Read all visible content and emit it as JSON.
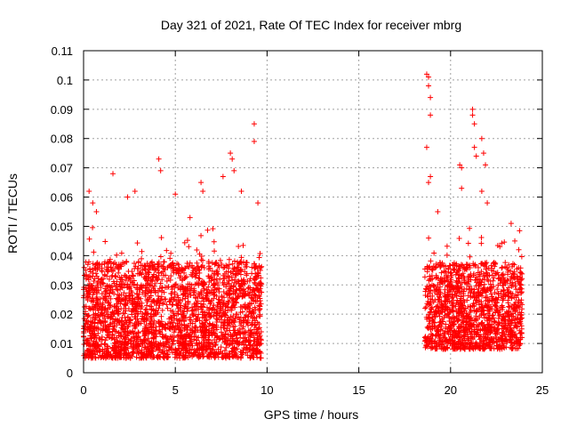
{
  "chart_data": {
    "type": "scatter",
    "title": "Day 321 of 2021, Rate Of TEC Index for receiver mbrg",
    "xlabel": "GPS time / hours",
    "ylabel": "ROTI / TECUs",
    "xlim": [
      0,
      25
    ],
    "ylim": [
      0,
      0.11
    ],
    "x_ticks": [
      "0",
      "5",
      "10",
      "15",
      "20",
      "25"
    ],
    "y_ticks": [
      "0",
      "0.01",
      "0.02",
      "0.03",
      "0.04",
      "0.05",
      "0.06",
      "0.07",
      "0.08",
      "0.09",
      "0.1",
      "0.11"
    ],
    "grid": true,
    "marker": "+",
    "color": "#ff0000",
    "data_segments": [
      {
        "x_start": 0.0,
        "x_end": 9.7,
        "typical_range": [
          0.005,
          0.035
        ],
        "notes": "dense block, spikes up to ~0.085"
      },
      {
        "x_start": 18.6,
        "x_end": 23.9,
        "typical_range": [
          0.008,
          0.035
        ],
        "notes": "dense block, spikes up to ~0.102"
      }
    ],
    "series": [
      {
        "points": [
          [
            0.3,
            0.062
          ],
          [
            0.5,
            0.058
          ],
          [
            0.7,
            0.055
          ],
          [
            1.6,
            0.068
          ],
          [
            2.4,
            0.06
          ],
          [
            2.8,
            0.062
          ],
          [
            4.1,
            0.073
          ],
          [
            4.2,
            0.069
          ],
          [
            5.0,
            0.061
          ],
          [
            5.8,
            0.053
          ],
          [
            6.4,
            0.065
          ],
          [
            6.5,
            0.062
          ],
          [
            7.6,
            0.067
          ],
          [
            8.0,
            0.075
          ],
          [
            8.1,
            0.073
          ],
          [
            8.2,
            0.069
          ],
          [
            8.6,
            0.062
          ],
          [
            9.3,
            0.085
          ],
          [
            9.3,
            0.079
          ],
          [
            9.5,
            0.058
          ],
          [
            18.7,
            0.102
          ],
          [
            18.8,
            0.101
          ],
          [
            18.8,
            0.098
          ],
          [
            18.9,
            0.094
          ],
          [
            18.9,
            0.088
          ],
          [
            18.7,
            0.077
          ],
          [
            18.9,
            0.067
          ],
          [
            18.8,
            0.065
          ],
          [
            19.3,
            0.055
          ],
          [
            20.5,
            0.071
          ],
          [
            20.6,
            0.07
          ],
          [
            20.6,
            0.063
          ],
          [
            21.2,
            0.09
          ],
          [
            21.2,
            0.088
          ],
          [
            21.3,
            0.085
          ],
          [
            21.3,
            0.077
          ],
          [
            21.4,
            0.074
          ],
          [
            21.7,
            0.08
          ],
          [
            21.8,
            0.075
          ],
          [
            21.9,
            0.071
          ],
          [
            21.7,
            0.062
          ],
          [
            22.0,
            0.058
          ],
          [
            23.3,
            0.051
          ],
          [
            23.5,
            0.045
          ]
        ]
      }
    ]
  }
}
